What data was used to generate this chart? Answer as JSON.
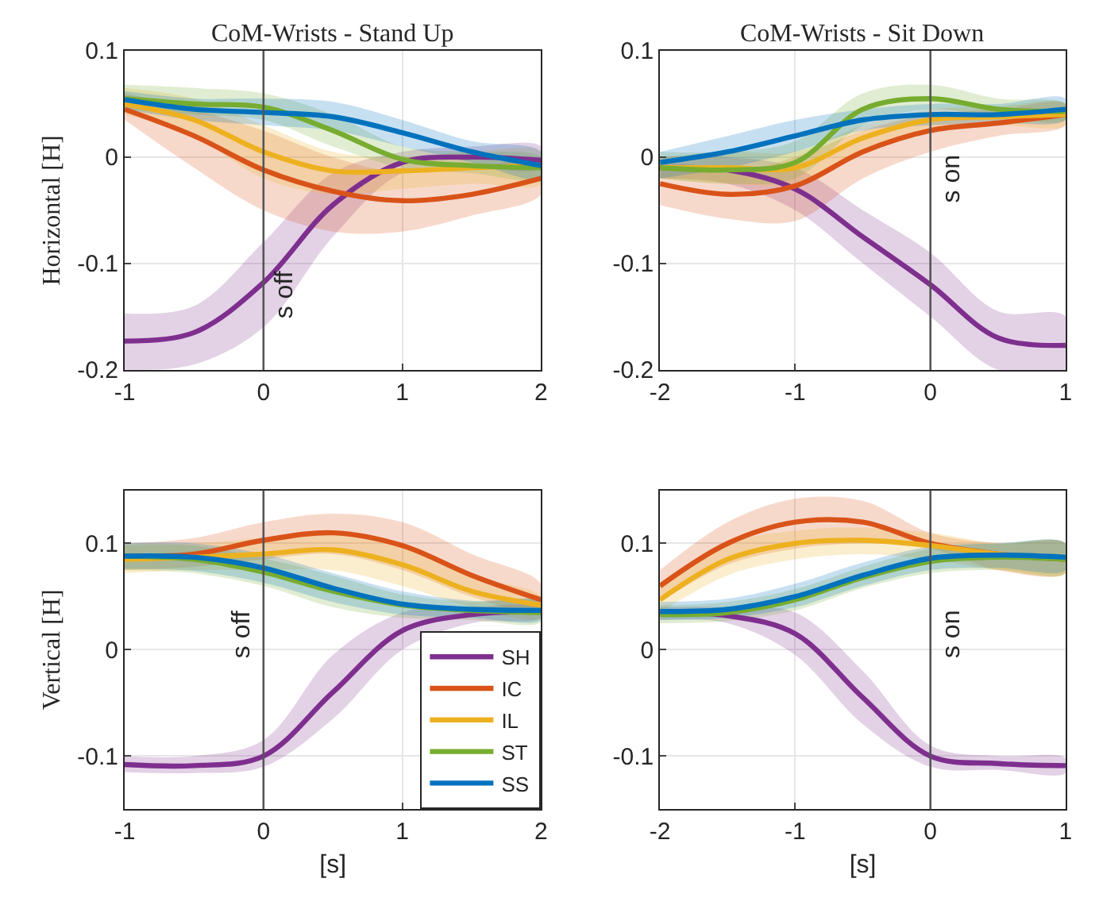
{
  "chart_data": [
    {
      "type": "line",
      "title": "CoM-Wrists - Stand Up",
      "ylabel": "Horizontal [H]",
      "xlim": [
        -1,
        2
      ],
      "xticks": [
        -1,
        0,
        1,
        2
      ],
      "ylim": [
        -0.2,
        0.1
      ],
      "yticks": [
        -0.2,
        -0.1,
        0,
        0.1
      ],
      "grid": true,
      "x": [
        -1,
        -0.5,
        0,
        0.5,
        1,
        1.5,
        2
      ],
      "ref_lines": [
        {
          "axis": "x",
          "value": 0,
          "label": "s off",
          "color": "#555555"
        }
      ],
      "series": [
        {
          "color": "#7e2f8e",
          "values": [
            -0.173,
            -0.165,
            -0.118,
            -0.045,
            -0.005,
            0.0,
            -0.003
          ],
          "lower": [
            -0.2,
            -0.195,
            -0.16,
            -0.075,
            -0.015,
            -0.01,
            -0.01
          ],
          "upper": [
            -0.147,
            -0.14,
            -0.08,
            -0.015,
            0.005,
            0.01,
            0.01
          ]
        },
        {
          "color": "#d95319",
          "values": [
            0.045,
            0.02,
            -0.012,
            -0.032,
            -0.041,
            -0.035,
            -0.02
          ],
          "lower": [
            0.035,
            -0.01,
            -0.05,
            -0.07,
            -0.07,
            -0.055,
            -0.035
          ],
          "upper": [
            0.06,
            0.045,
            0.025,
            0.0,
            -0.015,
            -0.01,
            -0.005
          ]
        },
        {
          "color": "#edb120",
          "values": [
            0.05,
            0.035,
            0.005,
            -0.013,
            -0.013,
            -0.01,
            -0.008
          ],
          "lower": [
            0.04,
            0.02,
            -0.02,
            -0.035,
            -0.03,
            -0.025,
            -0.025
          ],
          "upper": [
            0.065,
            0.055,
            0.03,
            0.005,
            0.0,
            0.005,
            0.005
          ]
        },
        {
          "color": "#77ac30",
          "values": [
            0.055,
            0.05,
            0.047,
            0.025,
            -0.002,
            -0.008,
            -0.01
          ],
          "lower": [
            0.045,
            0.04,
            0.035,
            0.01,
            -0.01,
            -0.015,
            -0.02
          ],
          "upper": [
            0.068,
            0.065,
            0.06,
            0.04,
            0.01,
            0.005,
            0.0
          ]
        },
        {
          "color": "#0072bd",
          "values": [
            0.054,
            0.045,
            0.042,
            0.038,
            0.023,
            0.005,
            -0.008
          ],
          "lower": [
            0.045,
            0.035,
            0.03,
            0.025,
            0.01,
            -0.005,
            -0.02
          ],
          "upper": [
            0.062,
            0.055,
            0.055,
            0.052,
            0.035,
            0.015,
            0.005
          ]
        }
      ]
    },
    {
      "type": "line",
      "title": "CoM-Wrists - Sit Down",
      "xlim": [
        -2,
        1
      ],
      "xticks": [
        -2,
        -1,
        0,
        1
      ],
      "ylim": [
        -0.2,
        0.1
      ],
      "yticks": [
        -0.2,
        -0.1,
        0,
        0.1
      ],
      "grid": true,
      "x": [
        -2,
        -1.5,
        -1,
        -0.5,
        0,
        0.5,
        1
      ],
      "ref_lines": [
        {
          "axis": "x",
          "value": 0,
          "label": "s on",
          "color": "#555555"
        }
      ],
      "series": [
        {
          "color": "#7e2f8e",
          "values": [
            -0.01,
            -0.012,
            -0.03,
            -0.075,
            -0.12,
            -0.17,
            -0.177
          ],
          "lower": [
            -0.02,
            -0.025,
            -0.05,
            -0.1,
            -0.15,
            -0.2,
            -0.2
          ],
          "upper": [
            0.0,
            0.0,
            -0.01,
            -0.05,
            -0.09,
            -0.145,
            -0.15
          ]
        },
        {
          "color": "#d95319",
          "values": [
            -0.025,
            -0.035,
            -0.027,
            0.005,
            0.025,
            0.032,
            0.04
          ],
          "lower": [
            -0.045,
            -0.058,
            -0.06,
            -0.02,
            0.005,
            0.02,
            0.03
          ],
          "upper": [
            -0.005,
            -0.015,
            0.0,
            0.025,
            0.04,
            0.045,
            0.05
          ]
        },
        {
          "color": "#edb120",
          "values": [
            -0.01,
            -0.01,
            -0.01,
            0.018,
            0.035,
            0.038,
            0.04
          ],
          "lower": [
            -0.02,
            -0.025,
            -0.025,
            0.005,
            0.025,
            0.03,
            0.03
          ],
          "upper": [
            0.0,
            0.005,
            0.005,
            0.03,
            0.045,
            0.048,
            0.05
          ]
        },
        {
          "color": "#77ac30",
          "values": [
            -0.01,
            -0.012,
            -0.005,
            0.045,
            0.055,
            0.045,
            0.043
          ],
          "lower": [
            -0.02,
            -0.025,
            -0.02,
            0.03,
            0.045,
            0.038,
            0.035
          ],
          "upper": [
            0.005,
            0.005,
            0.015,
            0.06,
            0.068,
            0.055,
            0.05
          ]
        },
        {
          "color": "#0072bd",
          "values": [
            -0.005,
            0.005,
            0.02,
            0.035,
            0.04,
            0.04,
            0.045
          ],
          "lower": [
            -0.02,
            -0.01,
            0.005,
            0.025,
            0.03,
            0.032,
            0.035
          ],
          "upper": [
            0.005,
            0.02,
            0.035,
            0.045,
            0.05,
            0.05,
            0.055
          ]
        }
      ]
    },
    {
      "type": "line",
      "ylabel": "Vertical [H]",
      "xlabel": "[s]",
      "xlim": [
        -1,
        2
      ],
      "xticks": [
        -1,
        0,
        1,
        2
      ],
      "ylim": [
        -0.15,
        0.15
      ],
      "yticks": [
        -0.1,
        0,
        0.1
      ],
      "grid": true,
      "legend": "bottom right",
      "x": [
        -1,
        -0.5,
        0,
        0.5,
        1,
        1.5,
        2
      ],
      "ref_lines": [
        {
          "axis": "x",
          "value": 0,
          "label": "s off",
          "color": "#555555"
        }
      ],
      "series": [
        {
          "name": "SH",
          "color": "#7e2f8e",
          "values": [
            -0.108,
            -0.109,
            -0.1,
            -0.04,
            0.018,
            0.033,
            0.036
          ],
          "lower": [
            -0.115,
            -0.116,
            -0.11,
            -0.065,
            0.0,
            0.025,
            0.03
          ],
          "upper": [
            -0.1,
            -0.1,
            -0.085,
            -0.005,
            0.035,
            0.04,
            0.04
          ]
        },
        {
          "name": "IC",
          "color": "#d95319",
          "values": [
            0.088,
            0.09,
            0.103,
            0.11,
            0.098,
            0.07,
            0.047
          ],
          "lower": [
            0.075,
            0.078,
            0.085,
            0.09,
            0.075,
            0.05,
            0.035
          ],
          "upper": [
            0.1,
            0.105,
            0.12,
            0.128,
            0.12,
            0.09,
            0.062
          ]
        },
        {
          "name": "IL",
          "color": "#edb120",
          "values": [
            0.085,
            0.087,
            0.09,
            0.094,
            0.08,
            0.055,
            0.042
          ],
          "lower": [
            0.072,
            0.075,
            0.075,
            0.075,
            0.06,
            0.04,
            0.03
          ],
          "upper": [
            0.098,
            0.1,
            0.105,
            0.11,
            0.1,
            0.07,
            0.05
          ]
        },
        {
          "name": "ST",
          "color": "#77ac30",
          "values": [
            0.088,
            0.085,
            0.073,
            0.055,
            0.042,
            0.037,
            0.035
          ],
          "lower": [
            0.075,
            0.072,
            0.06,
            0.04,
            0.03,
            0.028,
            0.026
          ],
          "upper": [
            0.1,
            0.098,
            0.086,
            0.07,
            0.052,
            0.045,
            0.045
          ]
        },
        {
          "name": "SS",
          "color": "#0072bd",
          "values": [
            0.088,
            0.087,
            0.077,
            0.058,
            0.043,
            0.038,
            0.037
          ],
          "lower": [
            0.076,
            0.074,
            0.063,
            0.045,
            0.033,
            0.03,
            0.028
          ],
          "upper": [
            0.1,
            0.1,
            0.09,
            0.072,
            0.055,
            0.046,
            0.045
          ]
        }
      ]
    },
    {
      "type": "line",
      "xlabel": "[s]",
      "xlim": [
        -2,
        1
      ],
      "xticks": [
        -2,
        -1,
        0,
        1
      ],
      "ylim": [
        -0.15,
        0.15
      ],
      "yticks": [
        -0.1,
        0,
        0.1
      ],
      "grid": true,
      "x": [
        -2,
        -1.5,
        -1,
        -0.5,
        0,
        0.5,
        1
      ],
      "ref_lines": [
        {
          "axis": "x",
          "value": 0,
          "label": "s on",
          "color": "#555555"
        }
      ],
      "series": [
        {
          "color": "#7e2f8e",
          "values": [
            0.035,
            0.032,
            0.015,
            -0.045,
            -0.1,
            -0.107,
            -0.109
          ],
          "lower": [
            0.028,
            0.025,
            -0.005,
            -0.07,
            -0.11,
            -0.113,
            -0.116
          ],
          "upper": [
            0.04,
            0.04,
            0.035,
            -0.02,
            -0.09,
            -0.1,
            -0.102
          ]
        },
        {
          "color": "#d95319",
          "values": [
            0.06,
            0.1,
            0.12,
            0.12,
            0.1,
            0.09,
            0.085
          ],
          "lower": [
            0.045,
            0.08,
            0.095,
            0.1,
            0.095,
            0.075,
            0.072
          ],
          "upper": [
            0.075,
            0.12,
            0.142,
            0.14,
            0.11,
            0.1,
            0.1
          ]
        },
        {
          "color": "#edb120",
          "values": [
            0.047,
            0.085,
            0.1,
            0.103,
            0.098,
            0.09,
            0.086
          ],
          "lower": [
            0.035,
            0.07,
            0.085,
            0.09,
            0.085,
            0.075,
            0.072
          ],
          "upper": [
            0.06,
            0.1,
            0.112,
            0.115,
            0.11,
            0.1,
            0.1
          ]
        },
        {
          "color": "#77ac30",
          "values": [
            0.033,
            0.035,
            0.047,
            0.068,
            0.083,
            0.087,
            0.085
          ],
          "lower": [
            0.025,
            0.027,
            0.037,
            0.058,
            0.072,
            0.075,
            0.072
          ],
          "upper": [
            0.042,
            0.045,
            0.057,
            0.078,
            0.095,
            0.1,
            0.1
          ]
        },
        {
          "color": "#0072bd",
          "values": [
            0.036,
            0.038,
            0.05,
            0.07,
            0.086,
            0.089,
            0.087
          ],
          "lower": [
            0.028,
            0.03,
            0.04,
            0.06,
            0.075,
            0.077,
            0.075
          ],
          "upper": [
            0.045,
            0.048,
            0.062,
            0.082,
            0.097,
            0.1,
            0.1
          ]
        }
      ]
    }
  ]
}
